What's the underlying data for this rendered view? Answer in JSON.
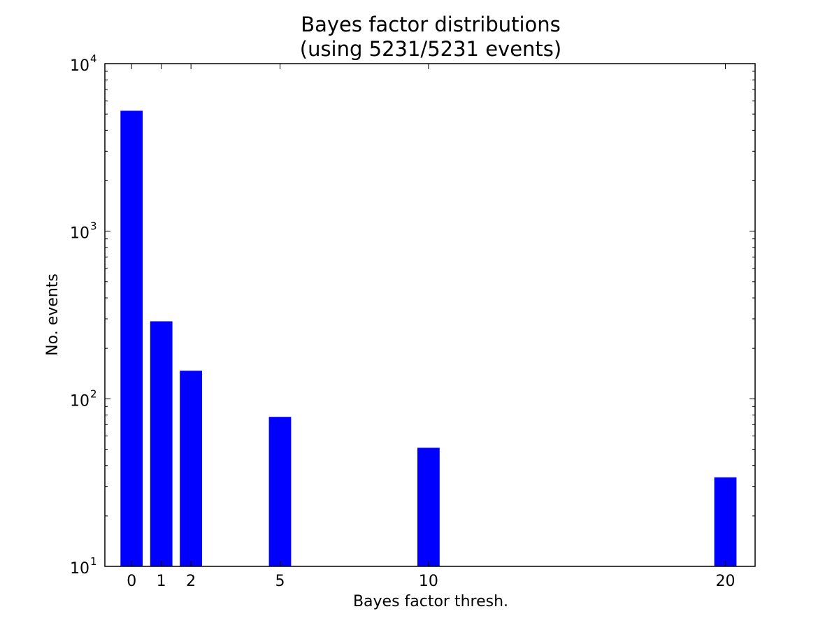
{
  "chart_data": {
    "type": "bar",
    "title": "Bayes factor distributions",
    "subtitle": "(using 5231/5231 events)",
    "xlabel": "Bayes factor thresh.",
    "ylabel": "No. events",
    "yscale": "log",
    "ylim": [
      10,
      10000
    ],
    "xlim": [
      -0.9,
      21.0
    ],
    "bar_width": 0.75,
    "color": "#0000ff",
    "x": [
      0,
      1,
      2,
      5,
      10,
      20
    ],
    "x_tick_labels": [
      "0",
      "1",
      "2",
      "5",
      "10",
      "20"
    ],
    "y_tick_labels": [
      {
        "base": "10",
        "exp": "1",
        "value": 10
      },
      {
        "base": "10",
        "exp": "2",
        "value": 100
      },
      {
        "base": "10",
        "exp": "3",
        "value": 1000
      },
      {
        "base": "10",
        "exp": "4",
        "value": 10000
      }
    ],
    "values": [
      5231,
      290,
      147,
      78,
      51,
      34
    ],
    "grid": false,
    "legend": "none"
  }
}
